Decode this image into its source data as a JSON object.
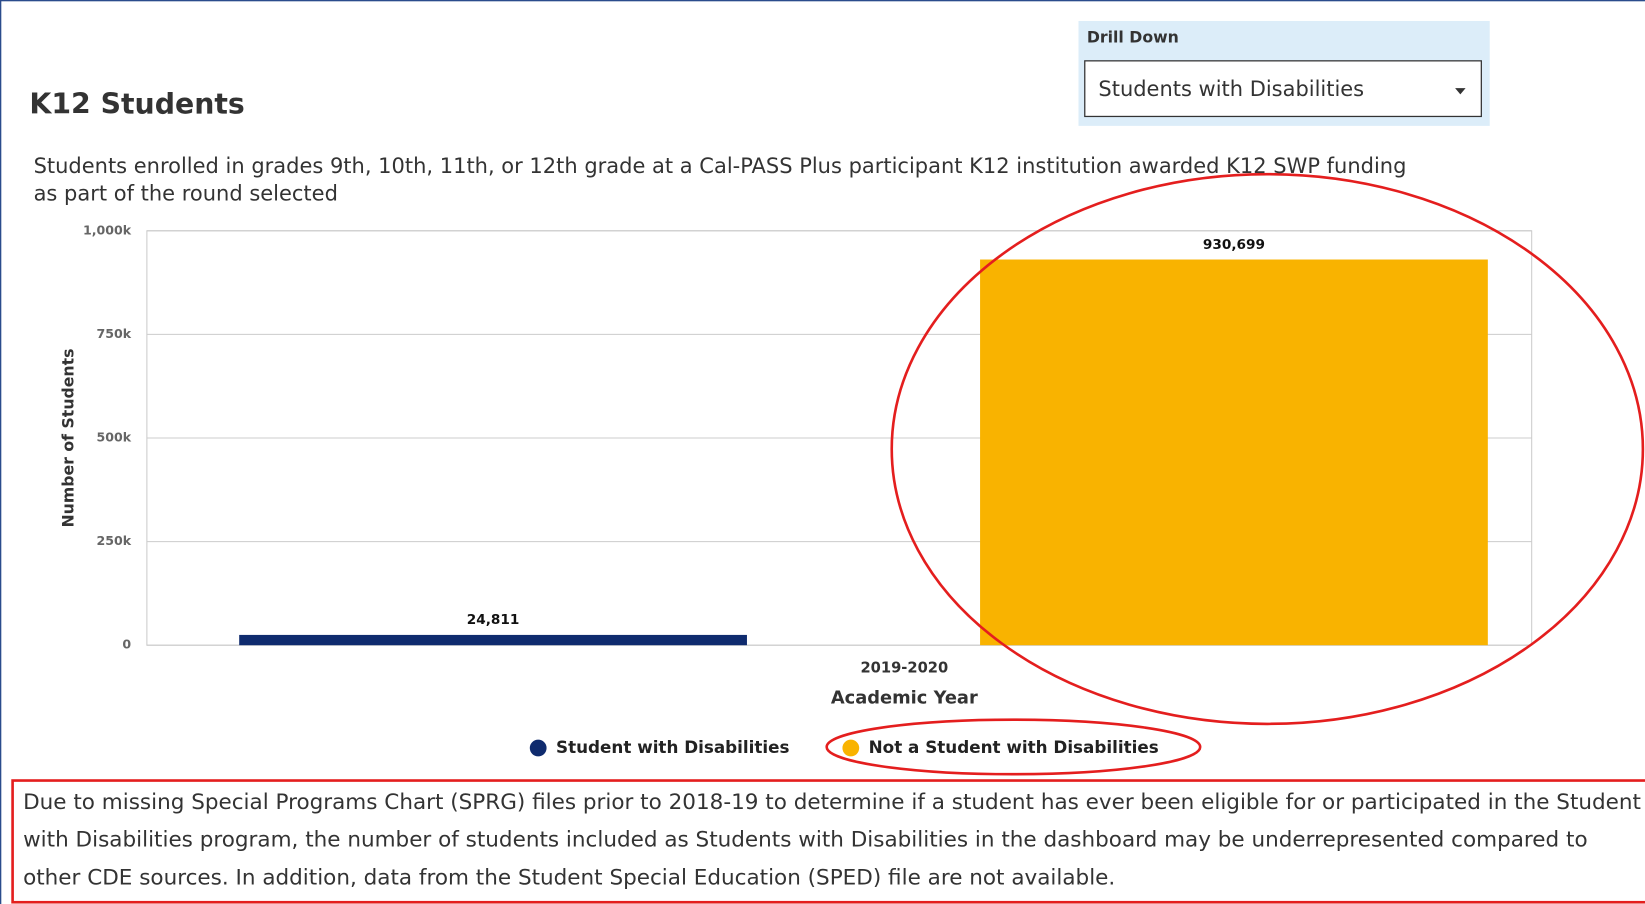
{
  "header": {
    "title": "K12 Students",
    "subtitle": "Students enrolled in grades 9th, 10th, 11th, or 12th  grade at a Cal-PASS Plus participant K12 institution awarded K12 SWP funding as part of the round selected"
  },
  "drill_down": {
    "label": "Drill Down",
    "selected": "Students with Disabilities"
  },
  "chart_data": {
    "type": "bar",
    "categories": [
      "2019-2020"
    ],
    "x_label": "Academic Year",
    "y_label": "Number of Students",
    "series": [
      {
        "name": "Student with Disabilities",
        "color": "#0f2b6e",
        "values": [
          24811
        ],
        "value_labels": [
          "24,811"
        ]
      },
      {
        "name": "Not a Student with Disabilities",
        "color": "#f9b300",
        "values": [
          930699
        ],
        "value_labels": [
          "930,699"
        ]
      }
    ],
    "ylim": [
      0,
      1000000
    ],
    "yticks": [
      0,
      {
        "value": 250000,
        "label": "250k"
      },
      {
        "value": 500000,
        "label": "500k"
      },
      {
        "value": 750000,
        "label": "750k"
      },
      {
        "value": 1000000,
        "label": "1,000k"
      }
    ],
    "grid": true,
    "legend": "bottom"
  },
  "note": "Due to missing Special Programs Chart (SPRG) files prior to 2018-19 to determine if a student has ever been eligible for or participated in the Student with  Disabilities program, the number of students included as Students with Disabilities in the dashboard may be underrepresented compared to other CDE sources. In addition, data from the Student Special Education (SPED) file are not available."
}
